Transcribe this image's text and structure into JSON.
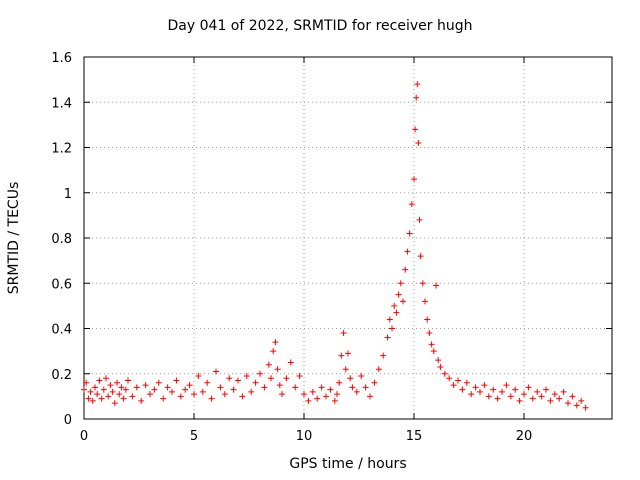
{
  "chart_data": {
    "type": "scatter",
    "title": "Day 041 of 2022, SRMTID for receiver hugh",
    "xlabel": "GPS time / hours",
    "ylabel": "SRMTID / TECUs",
    "xlim": [
      0,
      24
    ],
    "ylim": [
      0,
      1.6
    ],
    "xticks": [
      0,
      5,
      10,
      15,
      20
    ],
    "xtick_labels": [
      "0",
      "5",
      "10",
      "15",
      "20"
    ],
    "yticks": [
      0,
      0.2,
      0.4,
      0.6,
      0.8,
      1,
      1.2,
      1.4,
      1.6
    ],
    "ytick_labels": [
      "0",
      "0.2",
      "0.4",
      "0.6",
      "0.8",
      "1",
      "1.2",
      "1.4",
      "1.6"
    ],
    "grid": true,
    "marker": "+",
    "color": "#ff0000",
    "series": [
      {
        "name": "hugh",
        "points": [
          [
            0.0,
            0.13
          ],
          [
            0.1,
            0.16
          ],
          [
            0.2,
            0.09
          ],
          [
            0.3,
            0.12
          ],
          [
            0.4,
            0.08
          ],
          [
            0.5,
            0.14
          ],
          [
            0.6,
            0.11
          ],
          [
            0.7,
            0.17
          ],
          [
            0.8,
            0.09
          ],
          [
            0.9,
            0.13
          ],
          [
            1.0,
            0.18
          ],
          [
            1.1,
            0.1
          ],
          [
            1.2,
            0.15
          ],
          [
            1.3,
            0.12
          ],
          [
            1.4,
            0.07
          ],
          [
            1.5,
            0.16
          ],
          [
            1.6,
            0.11
          ],
          [
            1.7,
            0.14
          ],
          [
            1.8,
            0.09
          ],
          [
            1.9,
            0.13
          ],
          [
            2.0,
            0.17
          ],
          [
            2.2,
            0.1
          ],
          [
            2.4,
            0.14
          ],
          [
            2.6,
            0.08
          ],
          [
            2.8,
            0.15
          ],
          [
            3.0,
            0.11
          ],
          [
            3.2,
            0.13
          ],
          [
            3.4,
            0.16
          ],
          [
            3.6,
            0.09
          ],
          [
            3.8,
            0.14
          ],
          [
            4.0,
            0.12
          ],
          [
            4.2,
            0.17
          ],
          [
            4.4,
            0.1
          ],
          [
            4.6,
            0.13
          ],
          [
            4.8,
            0.15
          ],
          [
            5.0,
            0.11
          ],
          [
            5.2,
            0.19
          ],
          [
            5.4,
            0.12
          ],
          [
            5.6,
            0.16
          ],
          [
            5.8,
            0.09
          ],
          [
            6.0,
            0.21
          ],
          [
            6.2,
            0.14
          ],
          [
            6.4,
            0.11
          ],
          [
            6.6,
            0.18
          ],
          [
            6.8,
            0.13
          ],
          [
            7.0,
            0.17
          ],
          [
            7.2,
            0.1
          ],
          [
            7.4,
            0.19
          ],
          [
            7.6,
            0.12
          ],
          [
            7.8,
            0.16
          ],
          [
            8.0,
            0.2
          ],
          [
            8.2,
            0.14
          ],
          [
            8.4,
            0.24
          ],
          [
            8.5,
            0.18
          ],
          [
            8.6,
            0.3
          ],
          [
            8.7,
            0.34
          ],
          [
            8.8,
            0.22
          ],
          [
            8.9,
            0.15
          ],
          [
            9.0,
            0.11
          ],
          [
            9.2,
            0.18
          ],
          [
            9.4,
            0.25
          ],
          [
            9.6,
            0.14
          ],
          [
            9.8,
            0.19
          ],
          [
            10.0,
            0.11
          ],
          [
            10.2,
            0.08
          ],
          [
            10.4,
            0.12
          ],
          [
            10.6,
            0.09
          ],
          [
            10.8,
            0.14
          ],
          [
            11.0,
            0.1
          ],
          [
            11.2,
            0.13
          ],
          [
            11.4,
            0.08
          ],
          [
            11.5,
            0.11
          ],
          [
            11.6,
            0.16
          ],
          [
            11.7,
            0.28
          ],
          [
            11.8,
            0.38
          ],
          [
            11.9,
            0.22
          ],
          [
            12.0,
            0.29
          ],
          [
            12.1,
            0.18
          ],
          [
            12.2,
            0.14
          ],
          [
            12.4,
            0.12
          ],
          [
            12.6,
            0.19
          ],
          [
            12.8,
            0.14
          ],
          [
            13.0,
            0.1
          ],
          [
            13.2,
            0.16
          ],
          [
            13.4,
            0.22
          ],
          [
            13.6,
            0.28
          ],
          [
            13.8,
            0.36
          ],
          [
            13.9,
            0.44
          ],
          [
            14.0,
            0.4
          ],
          [
            14.1,
            0.5
          ],
          [
            14.2,
            0.47
          ],
          [
            14.3,
            0.55
          ],
          [
            14.4,
            0.6
          ],
          [
            14.5,
            0.52
          ],
          [
            14.6,
            0.66
          ],
          [
            14.7,
            0.74
          ],
          [
            14.8,
            0.82
          ],
          [
            14.9,
            0.95
          ],
          [
            15.0,
            1.06
          ],
          [
            15.05,
            1.28
          ],
          [
            15.1,
            1.42
          ],
          [
            15.15,
            1.48
          ],
          [
            15.2,
            1.22
          ],
          [
            15.25,
            0.88
          ],
          [
            15.3,
            0.72
          ],
          [
            15.4,
            0.6
          ],
          [
            15.5,
            0.52
          ],
          [
            15.6,
            0.44
          ],
          [
            15.7,
            0.38
          ],
          [
            15.8,
            0.33
          ],
          [
            15.9,
            0.3
          ],
          [
            16.0,
            0.59
          ],
          [
            16.1,
            0.26
          ],
          [
            16.2,
            0.23
          ],
          [
            16.4,
            0.2
          ],
          [
            16.6,
            0.18
          ],
          [
            16.8,
            0.15
          ],
          [
            17.0,
            0.17
          ],
          [
            17.2,
            0.13
          ],
          [
            17.4,
            0.16
          ],
          [
            17.6,
            0.11
          ],
          [
            17.8,
            0.14
          ],
          [
            18.0,
            0.12
          ],
          [
            18.2,
            0.15
          ],
          [
            18.4,
            0.1
          ],
          [
            18.6,
            0.13
          ],
          [
            18.8,
            0.09
          ],
          [
            19.0,
            0.12
          ],
          [
            19.2,
            0.15
          ],
          [
            19.4,
            0.1
          ],
          [
            19.6,
            0.13
          ],
          [
            19.8,
            0.08
          ],
          [
            20.0,
            0.11
          ],
          [
            20.2,
            0.14
          ],
          [
            20.4,
            0.09
          ],
          [
            20.6,
            0.12
          ],
          [
            20.8,
            0.1
          ],
          [
            21.0,
            0.13
          ],
          [
            21.2,
            0.08
          ],
          [
            21.4,
            0.11
          ],
          [
            21.6,
            0.09
          ],
          [
            21.8,
            0.12
          ],
          [
            22.0,
            0.07
          ],
          [
            22.2,
            0.1
          ],
          [
            22.4,
            0.06
          ],
          [
            22.6,
            0.08
          ],
          [
            22.8,
            0.05
          ]
        ]
      }
    ]
  }
}
